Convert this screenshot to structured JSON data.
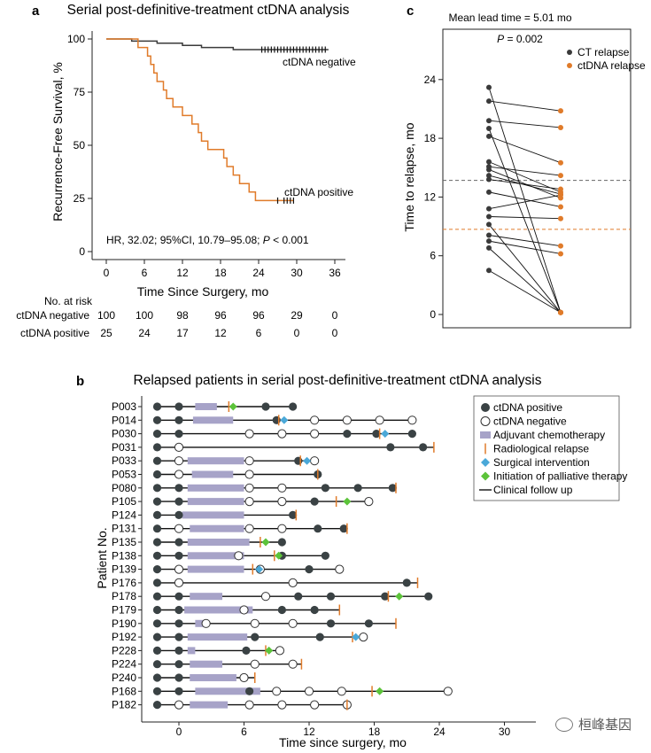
{
  "panel_labels": {
    "a": "a",
    "b": "b",
    "c": "c"
  },
  "watermark": "桓峰基因",
  "chart_data": [
    {
      "type": "line",
      "panel": "a",
      "title": "Serial post-definitive-treatment ctDNA analysis",
      "xlabel": "Time Since Surgery, mo",
      "ylabel": "Recurrence-Free Survival, %",
      "xlim": [
        -2,
        37
      ],
      "ylim": [
        0,
        100
      ],
      "xticks": [
        0,
        6,
        12,
        18,
        24,
        30,
        36
      ],
      "yticks": [
        0,
        25,
        50,
        75,
        100
      ],
      "annotation_prefix": "HR, 32.02; 95%CI, 10.79–95.08; ",
      "annotation_p": "P",
      "annotation_suffix": " < 0.001",
      "series": [
        {
          "name": "ctDNA negative",
          "color": "#3a3a3a",
          "steps": [
            [
              0,
              100
            ],
            [
              4,
              100
            ],
            [
              4,
              99
            ],
            [
              8,
              99
            ],
            [
              8,
              98
            ],
            [
              12,
              98
            ],
            [
              12,
              97
            ],
            [
              15,
              97
            ],
            [
              15,
              96
            ],
            [
              20,
              96
            ],
            [
              20,
              95
            ],
            [
              35,
              95
            ]
          ],
          "censor_x": [
            24.5,
            25,
            25.5,
            26,
            26.5,
            27,
            27.5,
            28,
            28.5,
            29,
            29.5,
            30,
            30.5,
            31,
            31.5,
            32,
            32.5,
            33,
            33.5,
            34,
            34.5
          ]
        },
        {
          "name": "ctDNA positive",
          "color": "#e07b2a",
          "steps": [
            [
              0,
              100
            ],
            [
              5,
              100
            ],
            [
              5,
              96
            ],
            [
              6.5,
              96
            ],
            [
              6.5,
              92
            ],
            [
              7,
              92
            ],
            [
              7,
              88
            ],
            [
              7.5,
              88
            ],
            [
              7.5,
              84
            ],
            [
              8,
              84
            ],
            [
              8,
              80
            ],
            [
              9,
              80
            ],
            [
              9,
              76
            ],
            [
              9.5,
              76
            ],
            [
              9.5,
              72
            ],
            [
              10.5,
              72
            ],
            [
              10.5,
              68
            ],
            [
              12,
              68
            ],
            [
              12,
              64
            ],
            [
              13.5,
              64
            ],
            [
              13.5,
              60
            ],
            [
              14.5,
              60
            ],
            [
              14.5,
              56
            ],
            [
              15,
              56
            ],
            [
              15,
              52
            ],
            [
              16,
              52
            ],
            [
              16,
              48
            ],
            [
              18.5,
              48
            ],
            [
              18.5,
              44
            ],
            [
              19,
              44
            ],
            [
              19,
              40
            ],
            [
              20,
              40
            ],
            [
              20,
              36
            ],
            [
              21,
              36
            ],
            [
              21,
              32
            ],
            [
              22.5,
              32
            ],
            [
              22.5,
              28
            ],
            [
              23.5,
              28
            ],
            [
              23.5,
              24
            ],
            [
              29.5,
              24
            ]
          ],
          "censor_x": [
            27,
            28,
            28.5,
            29,
            29.5
          ]
        }
      ],
      "risk_table": {
        "header": "No. at risk",
        "rows": [
          {
            "label": "ctDNA negative",
            "values": [
              "100",
              "100",
              "98",
              "96",
              "96",
              "29",
              "0"
            ]
          },
          {
            "label": "ctDNA positive",
            "values": [
              "25",
              "24",
              "17",
              "12",
              "6",
              "0",
              "0"
            ]
          }
        ]
      }
    },
    {
      "type": "scatter",
      "panel": "c",
      "title": "Mean lead time = 5.01 mo",
      "p_label": "P",
      "p_value": " = 0.002",
      "ylabel": "Time to relapse, mo",
      "ylim": [
        -1,
        30
      ],
      "yticks": [
        0,
        6,
        12,
        18,
        24
      ],
      "legend": [
        {
          "name": "CT relapse",
          "color": "#3a3a3a"
        },
        {
          "name": "ctDNA relapse",
          "color": "#e07b2a"
        }
      ],
      "mean_ct": 13.7,
      "mean_ctdna": 8.7,
      "pairs": [
        [
          23.2,
          0.2
        ],
        [
          21.8,
          20.8
        ],
        [
          19.8,
          19.1
        ],
        [
          19.0,
          0.2
        ],
        [
          18.2,
          15.5
        ],
        [
          15.6,
          12.5
        ],
        [
          15.1,
          14.2
        ],
        [
          14.8,
          11.9
        ],
        [
          14.2,
          12.3
        ],
        [
          13.8,
          12.8
        ],
        [
          12.5,
          11.0
        ],
        [
          10.8,
          12.2
        ],
        [
          10.0,
          9.8
        ],
        [
          9.2,
          0.2
        ],
        [
          8.1,
          7.0
        ],
        [
          7.5,
          6.2
        ],
        [
          6.8,
          0.2
        ],
        [
          4.5,
          0.2
        ]
      ]
    },
    {
      "type": "swimmer",
      "panel": "b",
      "title": "Relapsed patients in serial post-definitive-treatment ctDNA analysis",
      "xlabel": "Time since surgery, mo",
      "ylabel": "Patient No.",
      "xlim": [
        -4,
        33
      ],
      "xticks": [
        0,
        6,
        12,
        18,
        24,
        30
      ],
      "legend": [
        {
          "key": "pos",
          "label": "ctDNA positive"
        },
        {
          "key": "neg",
          "label": "ctDNA negative"
        },
        {
          "key": "chemo",
          "label": "Adjuvant chemotherapy"
        },
        {
          "key": "rad",
          "label": "Radiological relapse"
        },
        {
          "key": "surg",
          "label": "Surgical intervention"
        },
        {
          "key": "pall",
          "label": "Initiation of palliative therapy"
        },
        {
          "key": "fu",
          "label": "Clinical follow up"
        }
      ],
      "patients": [
        {
          "id": "P003",
          "end": 10.5,
          "chemo": [
            1.5,
            3.5
          ],
          "pos": [
            -2,
            0,
            8,
            10.5
          ],
          "neg": [],
          "rad": 4.6,
          "surg": null,
          "pall": 5
        },
        {
          "id": "P014",
          "end": 21.5,
          "chemo": [
            1.3,
            5
          ],
          "pos": [
            -2,
            0,
            9
          ],
          "neg": [
            12.5,
            15.5,
            18.5,
            21.5
          ],
          "rad": 9.2,
          "surg": 9.7,
          "pall": null
        },
        {
          "id": "P030",
          "end": 21.5,
          "chemo": null,
          "pos": [
            -2,
            0,
            15.5,
            18.2,
            21.5
          ],
          "neg": [
            6.5,
            9.5,
            12.5
          ],
          "rad": 18.5,
          "surg": 19,
          "pall": null
        },
        {
          "id": "P031",
          "end": 23.5,
          "chemo": null,
          "pos": [
            -2,
            19.5,
            22.5
          ],
          "neg": [
            0
          ],
          "rad": 23.5,
          "surg": null,
          "pall": null
        },
        {
          "id": "P033",
          "end": 12.5,
          "chemo": [
            0.8,
            6
          ],
          "pos": [
            -2,
            11
          ],
          "neg": [
            0,
            6.5,
            12.5
          ],
          "rad": 11.2,
          "surg": 11.8,
          "pall": null
        },
        {
          "id": "P053",
          "end": 12.8,
          "chemo": [
            1.2,
            5
          ],
          "pos": [
            -2,
            12.8
          ],
          "neg": [
            0,
            6.5
          ],
          "rad": 12.8,
          "surg": null,
          "pall": null
        },
        {
          "id": "P080",
          "end": 20,
          "chemo": [
            0.8,
            6
          ],
          "pos": [
            -2,
            0,
            13.5,
            16.5,
            19.7
          ],
          "neg": [
            6.5,
            9.5
          ],
          "rad": 20,
          "surg": null,
          "pall": null
        },
        {
          "id": "P105",
          "end": 17.5,
          "chemo": [
            0.8,
            6
          ],
          "pos": [
            -2,
            0,
            12.5
          ],
          "neg": [
            6.5,
            9.5,
            17.5
          ],
          "rad": 14.5,
          "surg": null,
          "pall": 15.5
        },
        {
          "id": "P124",
          "end": 10.8,
          "chemo": [
            0.3,
            6
          ],
          "pos": [
            -2,
            0,
            10.5
          ],
          "neg": [],
          "rad": 10.8,
          "surg": null,
          "pall": null
        },
        {
          "id": "P131",
          "end": 15.5,
          "chemo": [
            1,
            6
          ],
          "pos": [
            -2,
            12.8,
            15.2
          ],
          "neg": [
            0,
            6.5,
            9.5
          ],
          "rad": 15.5,
          "surg": null,
          "pall": null
        },
        {
          "id": "P135",
          "end": 9.5,
          "chemo": [
            0.8,
            6.5
          ],
          "pos": [
            -2,
            0,
            9.5
          ],
          "neg": [],
          "rad": 7.5,
          "surg": null,
          "pall": 8
        },
        {
          "id": "P138",
          "end": 13.5,
          "chemo": [
            0.8,
            6
          ],
          "pos": [
            -2,
            0,
            9.5,
            13.5
          ],
          "neg": [
            5.5
          ],
          "rad": 8.8,
          "surg": null,
          "pall": 9.2
        },
        {
          "id": "P139",
          "end": 14.8,
          "chemo": [
            0.8,
            6
          ],
          "pos": [
            -2,
            12
          ],
          "neg": [
            0,
            7.5,
            14.8
          ],
          "rad": 6.8,
          "surg": 7.4,
          "pall": null
        },
        {
          "id": "P176",
          "end": 22,
          "chemo": null,
          "pos": [
            -2,
            21
          ],
          "neg": [
            0,
            10.5
          ],
          "rad": 22,
          "surg": null,
          "pall": null
        },
        {
          "id": "P178",
          "end": 23,
          "chemo": [
            1,
            4
          ],
          "pos": [
            -2,
            0,
            11,
            14,
            19,
            23
          ],
          "neg": [
            8
          ],
          "rad": 19.3,
          "surg": null,
          "pall": 20.3
        },
        {
          "id": "P179",
          "end": 14.8,
          "chemo": [
            0.5,
            6.8
          ],
          "pos": [
            -2,
            0,
            9.5,
            12.5
          ],
          "neg": [
            6
          ],
          "rad": 14.8,
          "surg": null,
          "pall": null
        },
        {
          "id": "P190",
          "end": 20,
          "chemo": [
            1.5,
            2.5
          ],
          "pos": [
            -2,
            0,
            14,
            17.5
          ],
          "neg": [
            2.5,
            7,
            10.5
          ],
          "rad": 20,
          "surg": null,
          "pall": null
        },
        {
          "id": "P192",
          "end": 17,
          "chemo": [
            0.8,
            6.3
          ],
          "pos": [
            -2,
            0,
            7,
            13
          ],
          "neg": [
            17
          ],
          "rad": 16,
          "surg": 16.3,
          "pall": null
        },
        {
          "id": "P228",
          "end": 9.3,
          "chemo": [
            0.8,
            1.5
          ],
          "pos": [
            -2,
            0,
            6.2
          ],
          "neg": [
            9.3
          ],
          "rad": 8,
          "surg": null,
          "pall": 8.3
        },
        {
          "id": "P224",
          "end": 11.3,
          "chemo": [
            1,
            4
          ],
          "pos": [
            -2,
            0
          ],
          "neg": [
            7,
            10.5
          ],
          "rad": 11.3,
          "surg": null,
          "pall": null
        },
        {
          "id": "P240",
          "end": 7,
          "chemo": [
            1,
            5.3
          ],
          "pos": [
            -2,
            0
          ],
          "neg": [
            6
          ],
          "rad": 7,
          "surg": null,
          "pall": null
        },
        {
          "id": "P168",
          "end": 24.8,
          "chemo": [
            1.5,
            7.5
          ],
          "pos": [
            -2,
            0,
            6.5
          ],
          "neg": [
            9,
            12,
            15,
            24.8
          ],
          "rad": 17.8,
          "surg": null,
          "pall": 18.5
        },
        {
          "id": "P182",
          "end": 15.5,
          "chemo": [
            1,
            4.5
          ],
          "pos": [
            -2
          ],
          "neg": [
            0,
            6.5,
            9.5,
            12.5,
            15.5
          ],
          "rad": 15.5,
          "surg": null,
          "pall": null
        }
      ]
    }
  ]
}
